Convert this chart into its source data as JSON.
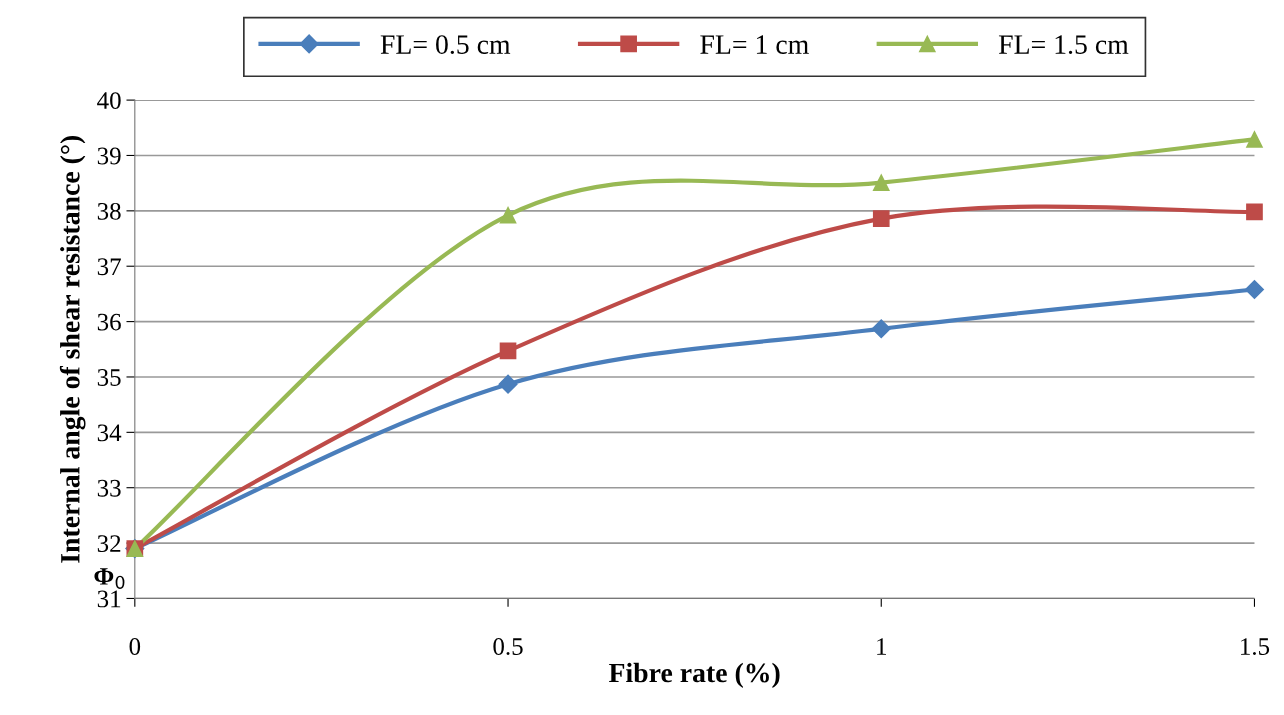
{
  "chart_data": {
    "type": "line",
    "xlabel": "Fibre rate (%)",
    "ylabel": "Internal angle of shear resistance (°)",
    "x": [
      0,
      0.5,
      1,
      1.5
    ],
    "series": [
      {
        "name": "FL= 0.5 cm",
        "color": "#4a7ebb",
        "marker": "diamond",
        "values": [
          31.9,
          34.87,
          35.87,
          36.58
        ]
      },
      {
        "name": "FL= 1 cm",
        "color": "#be4b48",
        "marker": "square",
        "values": [
          31.9,
          35.47,
          37.86,
          37.98
        ]
      },
      {
        "name": "FL= 1.5 cm",
        "color": "#98b954",
        "marker": "triangle",
        "values": [
          31.9,
          37.92,
          38.51,
          39.29
        ]
      }
    ],
    "xlim": [
      0,
      1.5
    ],
    "xticks": [
      0,
      0.5,
      1,
      1.5
    ],
    "ylim": [
      31,
      40
    ],
    "yticks": [
      31,
      32,
      33,
      34,
      35,
      36,
      37,
      38,
      39,
      40
    ],
    "grid": "y",
    "legend": "top",
    "line_style": "solid",
    "annotations": [
      {
        "text": "Φ$_{0}$",
        "x": 0,
        "y": 31.9
      }
    ]
  }
}
